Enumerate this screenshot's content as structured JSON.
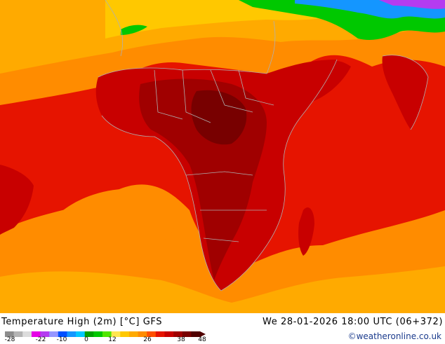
{
  "map": {
    "title": "Temperature High (2m) [°C] GFS",
    "valid_time": "We 28-01-2026 18:00 UTC (06+372)",
    "credit": "©weatheronline.co.uk"
  },
  "legend": {
    "labels": [
      "-28",
      "-22",
      "-10",
      "0",
      "12",
      "26",
      "38",
      "48"
    ],
    "colors": [
      "#8c8c8c",
      "#b4b4b4",
      "#dcdcdc",
      "#e600e6",
      "#b43cf0",
      "#9696ff",
      "#0050ff",
      "#1496ff",
      "#00c8ff",
      "#00a000",
      "#00c800",
      "#50e600",
      "#ffe650",
      "#ffc800",
      "#ffaa00",
      "#ff8c00",
      "#ff5000",
      "#e61400",
      "#c80000",
      "#a00000",
      "#780000",
      "#500000"
    ]
  }
}
